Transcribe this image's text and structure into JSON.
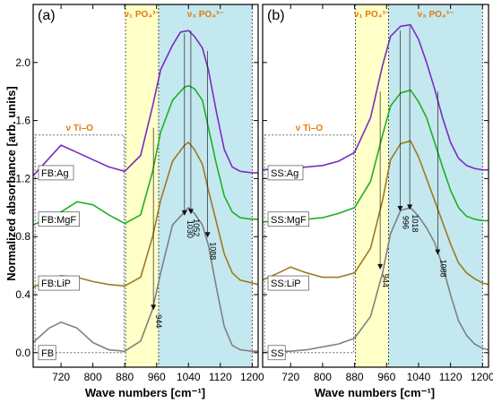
{
  "chart_data": {
    "type": "line",
    "ylabel": "Normalized absorbance [arb. units]",
    "xlabel": "Wave numbers [cm⁻¹]",
    "y_ticks": [
      "0.0",
      "0.4",
      "0.8",
      "1.2",
      "1.6",
      "2.0"
    ],
    "ylim": [
      -0.1,
      2.4
    ],
    "panels": [
      {
        "label": "(a)",
        "xlim": [
          650,
          1215
        ],
        "x_ticks": [
          "720",
          "800",
          "880",
          "960",
          "1040",
          "1120",
          "1200"
        ],
        "regions": [
          {
            "label": "ν Ti–O",
            "from": 655,
            "to": 878,
            "y_from": 0.0,
            "y_to": 1.5,
            "color": "#ffffff"
          },
          {
            "label": "ν₁ PO₄³⁻",
            "from": 882,
            "to": 965,
            "y_from": -0.1,
            "y_to": 2.4,
            "color": "#ffffc8"
          },
          {
            "label": "ν₃ PO₄³⁻",
            "from": 965,
            "to": 1200,
            "y_from": -0.1,
            "y_to": 2.4,
            "color": "#c4e8f0"
          }
        ],
        "series": [
          {
            "name": "FB",
            "color": "#808080",
            "x": [
              650,
              690,
              720,
              760,
              800,
              840,
              880,
              920,
              950,
              970,
              1000,
              1030,
              1040,
              1055,
              1075,
              1090,
              1110,
              1130,
              1150,
              1170,
              1200,
              1215
            ],
            "y": [
              0.07,
              0.17,
              0.21,
              0.17,
              0.07,
              0.02,
              0.01,
              0.08,
              0.3,
              0.55,
              0.88,
              0.97,
              1.0,
              0.96,
              0.88,
              0.74,
              0.45,
              0.18,
              0.05,
              0.02,
              0.01,
              0.01
            ]
          },
          {
            "name": "FB:LiP",
            "color": "#9c7a20",
            "x": [
              650,
              690,
              720,
              760,
              800,
              840,
              880,
              920,
              950,
              970,
              1000,
              1030,
              1040,
              1055,
              1075,
              1090,
              1110,
              1130,
              1150,
              1170,
              1200,
              1215
            ],
            "y": [
              0.45,
              0.5,
              0.53,
              0.52,
              0.49,
              0.47,
              0.46,
              0.52,
              0.8,
              1.05,
              1.32,
              1.43,
              1.45,
              1.4,
              1.3,
              1.12,
              0.9,
              0.68,
              0.55,
              0.5,
              0.48,
              0.47
            ]
          },
          {
            "name": "FB:MgF",
            "color": "#1fb01f",
            "x": [
              650,
              690,
              720,
              760,
              800,
              840,
              880,
              920,
              950,
              970,
              1000,
              1030,
              1040,
              1055,
              1075,
              1090,
              1110,
              1130,
              1150,
              1170,
              1200,
              1215
            ],
            "y": [
              0.88,
              0.93,
              0.97,
              1.04,
              1.02,
              0.95,
              0.89,
              0.95,
              1.25,
              1.52,
              1.74,
              1.83,
              1.84,
              1.82,
              1.74,
              1.55,
              1.3,
              1.08,
              0.97,
              0.93,
              0.92,
              0.92
            ]
          },
          {
            "name": "FB:Ag",
            "color": "#7a2cc0",
            "x": [
              650,
              690,
              720,
              760,
              800,
              840,
              880,
              920,
              950,
              970,
              1000,
              1020,
              1040,
              1055,
              1075,
              1090,
              1110,
              1130,
              1150,
              1170,
              1200,
              1215
            ],
            "y": [
              1.22,
              1.34,
              1.43,
              1.38,
              1.33,
              1.28,
              1.25,
              1.36,
              1.7,
              1.95,
              2.12,
              2.21,
              2.22,
              2.18,
              2.1,
              1.95,
              1.66,
              1.4,
              1.28,
              1.25,
              1.24,
              1.24
            ]
          }
        ],
        "series_labels": [
          "FB:Ag",
          "FB:MgF",
          "FB:LiP",
          "FB"
        ],
        "peaks": [
          {
            "label": "944",
            "x": 952,
            "y_from": 1.55,
            "y_to": 0.3
          },
          {
            "label": "1030",
            "x": 1030,
            "y_from": 2.2,
            "y_to": 0.95
          },
          {
            "label": "1052",
            "x": 1046,
            "y_from": 2.22,
            "y_to": 0.96
          },
          {
            "label": "1088",
            "x": 1088,
            "y_from": 2.08,
            "y_to": 0.8
          }
        ]
      },
      {
        "label": "(b)",
        "xlim": [
          650,
          1215
        ],
        "x_ticks": [
          "720",
          "800",
          "880",
          "960",
          "1040",
          "1120",
          "1200"
        ],
        "regions": [
          {
            "label": "ν Ti–O",
            "from": 655,
            "to": 878,
            "y_from": 0.0,
            "y_to": 1.5,
            "color": "#ffffff"
          },
          {
            "label": "ν₁ PO₄³⁻",
            "from": 882,
            "to": 965,
            "y_from": -0.1,
            "y_to": 2.4,
            "color": "#ffffc8"
          },
          {
            "label": "ν₃ PO₄³⁻",
            "from": 965,
            "to": 1200,
            "y_from": -0.1,
            "y_to": 2.4,
            "color": "#c4e8f0"
          }
        ],
        "series": [
          {
            "name": "SS",
            "color": "#808080",
            "x": [
              650,
              690,
              720,
              760,
              800,
              840,
              880,
              920,
              950,
              970,
              995,
              1020,
              1040,
              1060,
              1080,
              1100,
              1120,
              1140,
              1160,
              1180,
              1200,
              1215
            ],
            "y": [
              0.0,
              0.01,
              0.01,
              0.02,
              0.04,
              0.06,
              0.1,
              0.25,
              0.55,
              0.82,
              0.98,
              1.0,
              0.94,
              0.86,
              0.76,
              0.6,
              0.4,
              0.22,
              0.12,
              0.06,
              0.03,
              0.02
            ]
          },
          {
            "name": "SS:LiP",
            "color": "#9c7a20",
            "x": [
              650,
              690,
              720,
              760,
              800,
              840,
              880,
              920,
              950,
              970,
              995,
              1020,
              1040,
              1060,
              1080,
              1100,
              1120,
              1140,
              1160,
              1180,
              1200,
              1215
            ],
            "y": [
              0.5,
              0.55,
              0.59,
              0.55,
              0.52,
              0.52,
              0.55,
              0.72,
              1.05,
              1.33,
              1.44,
              1.46,
              1.35,
              1.2,
              1.05,
              0.9,
              0.75,
              0.62,
              0.55,
              0.51,
              0.48,
              0.47
            ]
          },
          {
            "name": "SS:MgF",
            "color": "#1fb01f",
            "x": [
              650,
              690,
              720,
              760,
              800,
              840,
              880,
              920,
              950,
              970,
              995,
              1020,
              1040,
              1060,
              1080,
              1100,
              1120,
              1140,
              1160,
              1180,
              1200,
              1215
            ],
            "y": [
              0.9,
              0.91,
              0.91,
              0.92,
              0.93,
              0.96,
              1.0,
              1.18,
              1.5,
              1.7,
              1.79,
              1.81,
              1.73,
              1.62,
              1.45,
              1.28,
              1.12,
              1.0,
              0.94,
              0.92,
              0.91,
              0.91
            ]
          },
          {
            "name": "SS:Ag",
            "color": "#7a2cc0",
            "x": [
              650,
              690,
              720,
              760,
              800,
              840,
              880,
              920,
              950,
              970,
              995,
              1020,
              1040,
              1060,
              1080,
              1100,
              1120,
              1140,
              1160,
              1180,
              1200,
              1215
            ],
            "y": [
              1.26,
              1.27,
              1.27,
              1.28,
              1.29,
              1.32,
              1.38,
              1.62,
              1.98,
              2.18,
              2.25,
              2.26,
              2.16,
              2.0,
              1.82,
              1.62,
              1.45,
              1.34,
              1.29,
              1.27,
              1.26,
              1.26
            ]
          }
        ],
        "series_labels": [
          "SS:Ag",
          "SS:MgF",
          "SS:LiP",
          "SS"
        ],
        "peaks": [
          {
            "label": "944",
            "x": 944,
            "y_from": 1.8,
            "y_to": 0.58
          },
          {
            "label": "996",
            "x": 994,
            "y_from": 2.22,
            "y_to": 0.98
          },
          {
            "label": "1018",
            "x": 1018,
            "y_from": 2.25,
            "y_to": 0.99
          },
          {
            "label": "1088",
            "x": 1088,
            "y_from": 1.8,
            "y_to": 0.68
          }
        ]
      }
    ]
  }
}
